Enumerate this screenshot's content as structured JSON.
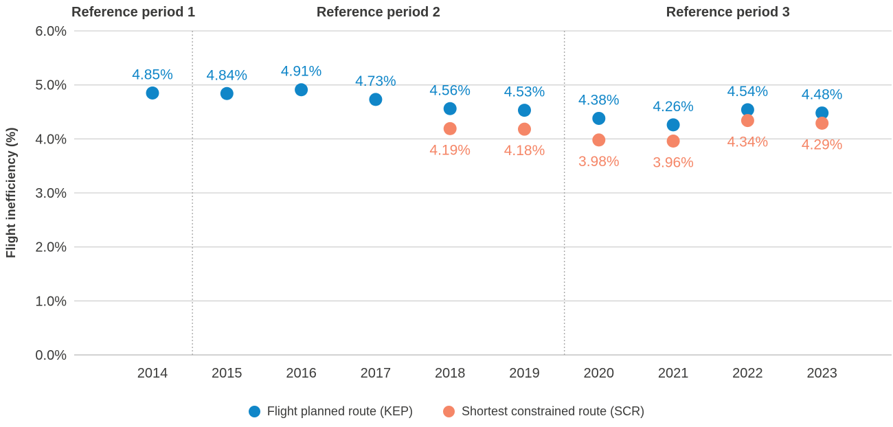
{
  "chart_data": {
    "type": "scatter",
    "title": "",
    "xlabel": "",
    "ylabel": "Flight inefficiency (%)",
    "ylim": [
      0,
      6
    ],
    "y_ticks": [
      "6.0%",
      "5.0%",
      "4.0%",
      "3.0%",
      "2.0%",
      "1.0%",
      "0.0%"
    ],
    "categories": [
      "2014",
      "2015",
      "2016",
      "2017",
      "2018",
      "2019",
      "2020",
      "2021",
      "2022",
      "2023"
    ],
    "grid": "horizontal",
    "legend_position": "bottom",
    "reference_periods": [
      {
        "label": "Reference period 1",
        "start_year": "2014",
        "end_year": "2014"
      },
      {
        "label": "Reference period 2",
        "start_year": "2015",
        "end_year": "2019"
      },
      {
        "label": "Reference period 3",
        "start_year": "2020",
        "end_year": "2023"
      }
    ],
    "series": [
      {
        "name": "Flight planned route (KEP)",
        "color": "#1086c8",
        "label_position": "above",
        "values": [
          4.85,
          4.84,
          4.91,
          4.73,
          4.56,
          4.53,
          4.38,
          4.26,
          4.54,
          4.48
        ],
        "labels": [
          "4.85%",
          "4.84%",
          "4.91%",
          "4.73%",
          "4.56%",
          "4.53%",
          "4.38%",
          "4.26%",
          "4.54%",
          "4.48%"
        ]
      },
      {
        "name": "Shortest constrained route (SCR)",
        "color": "#f58667",
        "label_position": "below",
        "values": [
          null,
          null,
          null,
          null,
          4.19,
          4.18,
          3.98,
          3.96,
          4.34,
          4.29
        ],
        "labels": [
          null,
          null,
          null,
          null,
          "4.19%",
          "4.18%",
          "3.98%",
          "3.96%",
          "4.34%",
          "4.29%"
        ]
      }
    ],
    "colors": {
      "text_dark": "#3a3a39",
      "gridline": "#d8d8d8",
      "baseline": "#c4c4c4",
      "period_separator": "#a9a9a9"
    }
  }
}
